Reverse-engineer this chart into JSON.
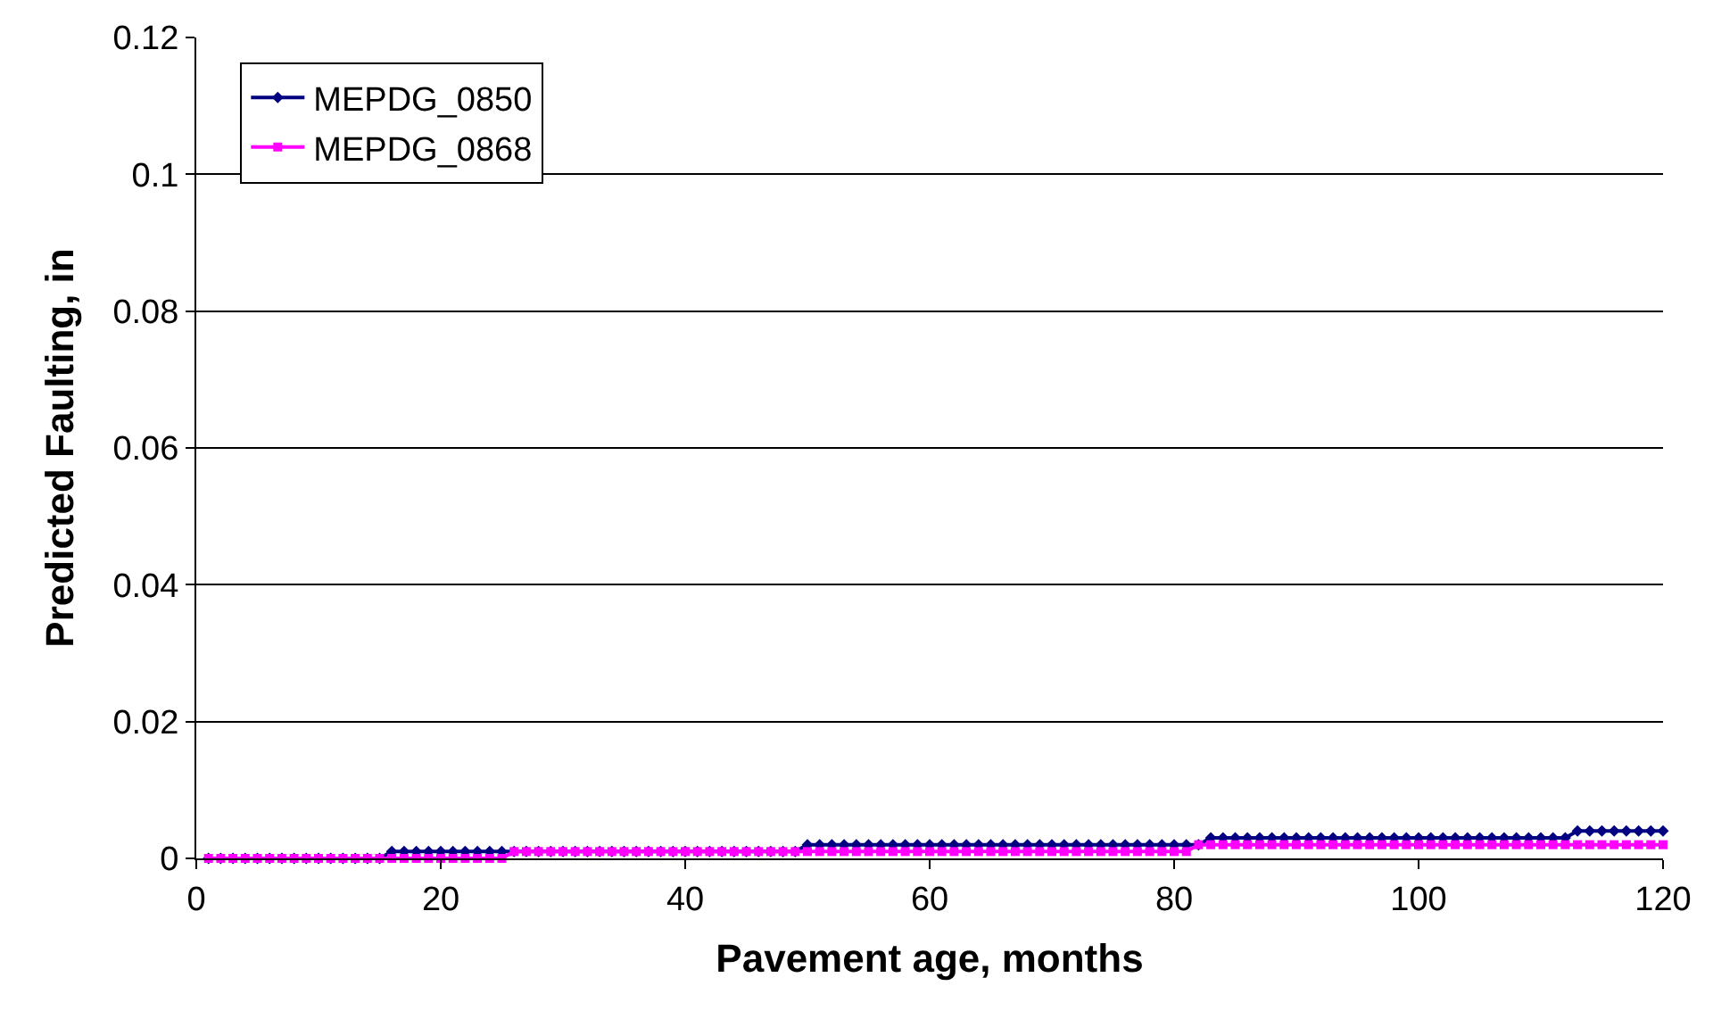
{
  "chart_data": {
    "type": "line",
    "xlabel": "Pavement age, months",
    "ylabel": "Predicted Faulting, in",
    "x": [
      1,
      2,
      3,
      4,
      5,
      6,
      7,
      8,
      9,
      10,
      11,
      12,
      13,
      14,
      15,
      16,
      17,
      18,
      19,
      20,
      21,
      22,
      23,
      24,
      25,
      26,
      27,
      28,
      29,
      30,
      31,
      32,
      33,
      34,
      35,
      36,
      37,
      38,
      39,
      40,
      41,
      42,
      43,
      44,
      45,
      46,
      47,
      48,
      49,
      50,
      51,
      52,
      53,
      54,
      55,
      56,
      57,
      58,
      59,
      60,
      61,
      62,
      63,
      64,
      65,
      66,
      67,
      68,
      69,
      70,
      71,
      72,
      73,
      74,
      75,
      76,
      77,
      78,
      79,
      80,
      81,
      82,
      83,
      84,
      85,
      86,
      87,
      88,
      89,
      90,
      91,
      92,
      93,
      94,
      95,
      96,
      97,
      98,
      99,
      100,
      101,
      102,
      103,
      104,
      105,
      106,
      107,
      108,
      109,
      110,
      111,
      112,
      113,
      114,
      115,
      116,
      117,
      118,
      119,
      120
    ],
    "series": [
      {
        "name": "MEPDG_0850",
        "color": "#000080",
        "marker": "diamond",
        "values": [
          0,
          0,
          0,
          0,
          0,
          0,
          0,
          0,
          0,
          0,
          0,
          0,
          0,
          0,
          0,
          0.001,
          0.001,
          0.001,
          0.001,
          0.001,
          0.001,
          0.001,
          0.001,
          0.001,
          0.001,
          0.001,
          0.001,
          0.001,
          0.001,
          0.001,
          0.001,
          0.001,
          0.001,
          0.001,
          0.001,
          0.001,
          0.001,
          0.001,
          0.001,
          0.001,
          0.001,
          0.001,
          0.001,
          0.001,
          0.001,
          0.001,
          0.001,
          0.001,
          0.001,
          0.002,
          0.002,
          0.002,
          0.002,
          0.002,
          0.002,
          0.002,
          0.002,
          0.002,
          0.002,
          0.002,
          0.002,
          0.002,
          0.002,
          0.002,
          0.002,
          0.002,
          0.002,
          0.002,
          0.002,
          0.002,
          0.002,
          0.002,
          0.002,
          0.002,
          0.002,
          0.002,
          0.002,
          0.002,
          0.002,
          0.002,
          0.002,
          0.002,
          0.003,
          0.003,
          0.003,
          0.003,
          0.003,
          0.003,
          0.003,
          0.003,
          0.003,
          0.003,
          0.003,
          0.003,
          0.003,
          0.003,
          0.003,
          0.003,
          0.003,
          0.003,
          0.003,
          0.003,
          0.003,
          0.003,
          0.003,
          0.003,
          0.003,
          0.003,
          0.003,
          0.003,
          0.003,
          0.003,
          0.004,
          0.004,
          0.004,
          0.004,
          0.004,
          0.004,
          0.004,
          0.004
        ]
      },
      {
        "name": "MEPDG_0868",
        "color": "#ff00ff",
        "marker": "square",
        "values": [
          0,
          0,
          0,
          0,
          0,
          0,
          0,
          0,
          0,
          0,
          0,
          0,
          0,
          0,
          0,
          0,
          0,
          0,
          0,
          0,
          0,
          0,
          0,
          0,
          0,
          0.001,
          0.001,
          0.001,
          0.001,
          0.001,
          0.001,
          0.001,
          0.001,
          0.001,
          0.001,
          0.001,
          0.001,
          0.001,
          0.001,
          0.001,
          0.001,
          0.001,
          0.001,
          0.001,
          0.001,
          0.001,
          0.001,
          0.001,
          0.001,
          0.001,
          0.001,
          0.001,
          0.001,
          0.001,
          0.001,
          0.001,
          0.001,
          0.001,
          0.001,
          0.001,
          0.001,
          0.001,
          0.001,
          0.001,
          0.001,
          0.001,
          0.001,
          0.001,
          0.001,
          0.001,
          0.001,
          0.001,
          0.001,
          0.001,
          0.001,
          0.001,
          0.001,
          0.001,
          0.001,
          0.001,
          0.001,
          0.002,
          0.002,
          0.002,
          0.002,
          0.002,
          0.002,
          0.002,
          0.002,
          0.002,
          0.002,
          0.002,
          0.002,
          0.002,
          0.002,
          0.002,
          0.002,
          0.002,
          0.002,
          0.002,
          0.002,
          0.002,
          0.002,
          0.002,
          0.002,
          0.002,
          0.002,
          0.002,
          0.002,
          0.002,
          0.002,
          0.002,
          0.002,
          0.002,
          0.002,
          0.002,
          0.002,
          0.002,
          0.002,
          0.002
        ]
      }
    ],
    "xlim": [
      0,
      120
    ],
    "xticks": [
      0,
      20,
      40,
      60,
      80,
      100,
      120
    ],
    "ylim": [
      0,
      0.12
    ],
    "yticks": [
      0,
      0.02,
      0.04,
      0.06,
      0.08,
      0.1,
      0.12
    ],
    "grid": "y",
    "legend": "top left",
    "line_style": "solid"
  }
}
